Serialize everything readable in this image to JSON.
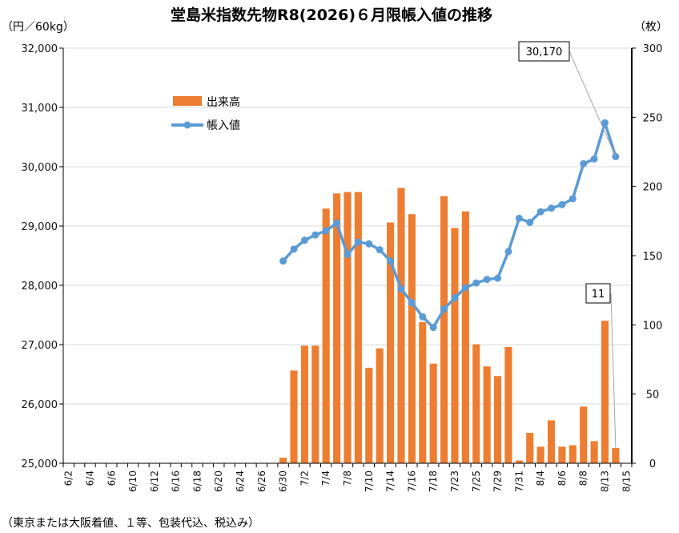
{
  "chart_data": {
    "type": "bar+line",
    "title": "堂島米指数先物R8(2026)６月限帳入値の推移",
    "left_axis_unit": "（円／60kg）",
    "right_axis_unit": "（枚）",
    "note": "（東京または大阪着値、１等、包装代込、税込み）",
    "left_ylim": [
      25000,
      32000
    ],
    "left_yticks": [
      25000,
      26000,
      27000,
      28000,
      29000,
      30000,
      31000,
      32000
    ],
    "left_ytick_labels": [
      "25,000",
      "26,000",
      "27,000",
      "28,000",
      "29,000",
      "30,000",
      "31,000",
      "32,000"
    ],
    "right_ylim": [
      0,
      300
    ],
    "right_yticks": [
      0,
      50,
      100,
      150,
      200,
      250,
      300
    ],
    "right_ytick_labels": [
      "0",
      "50",
      "100",
      "150",
      "200",
      "250",
      "300"
    ],
    "categories": [
      "6/2",
      "6/3",
      "6/4",
      "6/5",
      "6/6",
      "6/9",
      "6/10",
      "6/11",
      "6/12",
      "6/13",
      "6/16",
      "6/17",
      "6/18",
      "6/19",
      "6/20",
      "6/23",
      "6/24",
      "6/25",
      "6/26",
      "6/27",
      "6/30",
      "7/1",
      "7/2",
      "7/3",
      "7/4",
      "7/7",
      "7/8",
      "7/9",
      "7/10",
      "7/11",
      "7/14",
      "7/15",
      "7/16",
      "7/17",
      "7/18",
      "7/22",
      "7/23",
      "7/24",
      "7/25",
      "7/28",
      "7/29",
      "7/30",
      "7/31",
      "8/1",
      "8/4",
      "8/5",
      "8/6",
      "8/7",
      "8/8",
      "8/12",
      "8/13",
      "8/14",
      "8/15"
    ],
    "x_tick_labels": [
      "6/2",
      "6/4",
      "6/6",
      "6/10",
      "6/12",
      "6/16",
      "6/18",
      "6/20",
      "6/24",
      "6/26",
      "6/30",
      "7/2",
      "7/4",
      "7/8",
      "7/10",
      "7/14",
      "7/16",
      "7/18",
      "7/23",
      "7/25",
      "7/29",
      "7/31",
      "8/4",
      "8/6",
      "8/8",
      "8/13",
      "8/15"
    ],
    "legend_position": "upper-left",
    "series": [
      {
        "name": "出来高",
        "kind": "bar",
        "axis": "right",
        "color": "#ED7D31",
        "values": [
          0,
          0,
          0,
          0,
          0,
          0,
          0,
          0,
          0,
          0,
          0,
          0,
          0,
          0,
          0,
          0,
          0,
          0,
          0,
          0,
          4,
          67,
          85,
          85,
          184,
          195,
          196,
          196,
          69,
          83,
          174,
          199,
          180,
          102,
          72,
          193,
          170,
          182,
          86,
          70,
          63,
          84,
          2,
          22,
          12,
          31,
          12,
          13,
          41,
          16,
          103,
          11,
          null
        ]
      },
      {
        "name": "帳入値",
        "kind": "line",
        "axis": "left",
        "color": "#5B9BD5",
        "values": [
          null,
          null,
          null,
          null,
          null,
          null,
          null,
          null,
          null,
          null,
          null,
          null,
          null,
          null,
          null,
          null,
          null,
          null,
          null,
          null,
          28410,
          28610,
          28760,
          28850,
          28920,
          29050,
          28520,
          28730,
          28700,
          28600,
          28410,
          27940,
          27710,
          27470,
          27290,
          27600,
          27790,
          27960,
          28040,
          28100,
          28120,
          28570,
          29130,
          29060,
          29240,
          29300,
          29360,
          29460,
          30050,
          30130,
          30740,
          30170,
          null
        ]
      }
    ],
    "annotations": [
      {
        "text": "30,170",
        "target_series": "帳入値",
        "target_category": "8/14"
      },
      {
        "text": "11",
        "target_series": "出来高",
        "target_category": "8/14"
      }
    ]
  }
}
